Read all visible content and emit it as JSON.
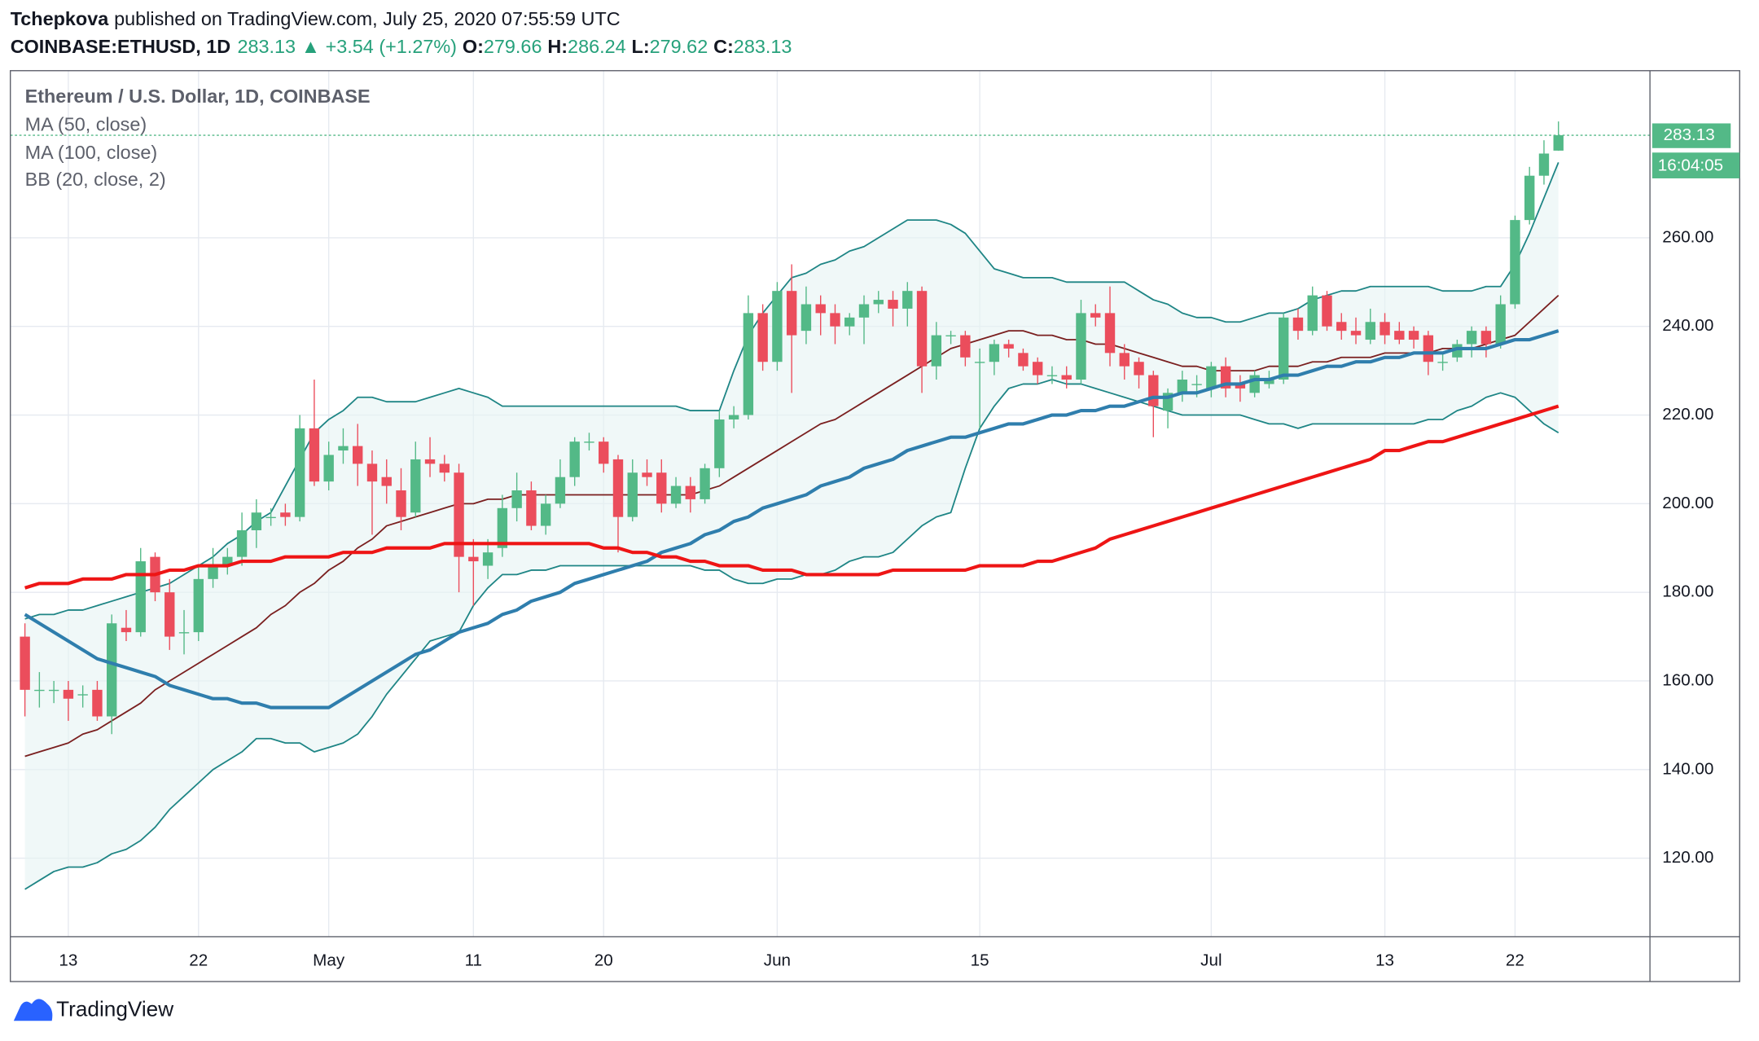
{
  "header": {
    "author": "Tchepkova",
    "published": "published on TradingView.com, July 25, 2020 07:55:59 UTC",
    "symbol": "COINBASE:ETHUSD, 1D",
    "change": "▲ +3.54 (+1.27%)",
    "o": "O:",
    "h": "H:",
    "l": "L:",
    "c": "C:",
    "logo": "TradingView"
  },
  "chart_data": {
    "type": "candlestick",
    "title": "Ethereum / U.S. Dollar, 1D, COINBASE",
    "countdown": "16:04:05",
    "up_color": "#53b987",
    "down_color": "#eb4d5c",
    "grid": true,
    "ylim": [
      102.3,
      297.7
    ],
    "yticks": [
      {
        "value": 120,
        "label": "120.00"
      },
      {
        "value": 140,
        "label": "140.00"
      },
      {
        "value": 160,
        "label": "160.00"
      },
      {
        "value": 180,
        "label": "180.00"
      },
      {
        "value": 200,
        "label": "200.00"
      },
      {
        "value": 220,
        "label": "220.00"
      },
      {
        "value": 240,
        "label": "240.00"
      },
      {
        "value": 260,
        "label": "260.00"
      }
    ],
    "categories": [
      null,
      null,
      null,
      "13",
      null,
      null,
      null,
      null,
      null,
      null,
      null,
      null,
      "22",
      null,
      null,
      null,
      null,
      null,
      null,
      null,
      null,
      "May",
      null,
      null,
      null,
      null,
      null,
      null,
      null,
      null,
      null,
      "11",
      null,
      null,
      null,
      null,
      null,
      null,
      null,
      null,
      "20",
      null,
      null,
      null,
      null,
      null,
      null,
      null,
      null,
      null,
      null,
      null,
      "Jun",
      null,
      null,
      null,
      null,
      null,
      null,
      null,
      null,
      null,
      null,
      null,
      null,
      null,
      "15",
      null,
      null,
      null,
      null,
      null,
      null,
      null,
      null,
      null,
      null,
      null,
      null,
      null,
      null,
      null,
      "Jul",
      null,
      null,
      null,
      null,
      null,
      null,
      null,
      null,
      null,
      null,
      null,
      "13",
      null,
      null,
      null,
      null,
      null,
      null,
      null,
      null,
      "22",
      null,
      null,
      null
    ],
    "open": [
      170,
      158,
      158,
      158,
      157,
      158,
      152,
      172,
      171,
      188,
      180,
      171,
      171,
      183,
      186,
      188,
      194,
      197,
      198,
      197,
      217,
      205,
      212,
      213,
      209,
      206,
      203,
      198,
      210,
      209,
      207,
      188,
      186,
      190,
      199,
      203,
      195,
      200,
      206,
      214,
      214,
      210,
      197,
      207,
      207,
      200,
      204,
      201,
      208,
      219,
      220,
      243,
      232,
      248,
      239,
      245,
      243,
      240,
      242,
      245,
      246,
      244,
      248,
      231,
      238,
      238,
      232,
      232,
      236,
      234,
      232,
      229,
      229,
      228,
      243,
      243,
      234,
      232,
      229,
      221,
      225,
      227,
      226,
      231,
      227,
      225,
      227,
      228,
      242,
      239,
      247,
      241,
      239,
      237,
      241,
      239,
      239,
      238,
      232,
      233,
      236,
      239,
      236,
      245,
      264,
      274,
      279.66
    ],
    "high": [
      173,
      162,
      160,
      160,
      159,
      160,
      175,
      176,
      190,
      189,
      183,
      176,
      186,
      190,
      190,
      198,
      201,
      199,
      200,
      220,
      228,
      214,
      217,
      218,
      212,
      210,
      208,
      214,
      215,
      211,
      209,
      192,
      192,
      202,
      207,
      205,
      202,
      210,
      215,
      216,
      215,
      211,
      210,
      210,
      210,
      206,
      206,
      209,
      221,
      222,
      247,
      245,
      250,
      254,
      249,
      247,
      245,
      243,
      247,
      248,
      248,
      250,
      249,
      241,
      239,
      239,
      235,
      237,
      237,
      235,
      233,
      231,
      231,
      246,
      245,
      249,
      236,
      233,
      230,
      226,
      230,
      229,
      232,
      233,
      229,
      230,
      230,
      243,
      244,
      249,
      248,
      243,
      242,
      244,
      243,
      241,
      240,
      239,
      234,
      237,
      240,
      240,
      247,
      265,
      276,
      282,
      286.24
    ],
    "low": [
      152,
      154,
      155,
      151,
      154,
      151,
      148,
      169,
      170,
      178,
      167,
      166,
      169,
      181,
      184,
      186,
      190,
      195,
      195,
      196,
      204,
      203,
      209,
      204,
      193,
      200,
      194,
      197,
      206,
      205,
      180,
      177,
      183,
      188,
      196,
      194,
      193,
      199,
      204,
      212,
      207,
      189,
      196,
      204,
      198,
      199,
      198,
      200,
      206,
      217,
      219,
      230,
      230,
      225,
      236,
      238,
      236,
      238,
      236,
      243,
      240,
      240,
      225,
      228,
      236,
      231,
      217,
      229,
      233,
      230,
      227,
      227,
      226,
      227,
      240,
      231,
      228,
      226,
      215,
      217,
      223,
      224,
      224,
      224,
      223,
      224,
      226,
      227,
      237,
      238,
      239,
      237,
      236,
      236,
      236,
      236,
      235,
      229,
      230,
      232,
      233,
      233,
      235,
      244,
      263,
      272,
      279.62
    ],
    "close": [
      158,
      158,
      158,
      156,
      157,
      152,
      173,
      171,
      187,
      180,
      170,
      171,
      183,
      186,
      188,
      194,
      198,
      197,
      197,
      217,
      205,
      211,
      213,
      209,
      205,
      204,
      197,
      210,
      209,
      207,
      188,
      187,
      189,
      199,
      203,
      195,
      200,
      206,
      214,
      214,
      209,
      197,
      207,
      206,
      200,
      204,
      201,
      208,
      219,
      220,
      243,
      232,
      248,
      238,
      245,
      243,
      240,
      242,
      245,
      246,
      244,
      248,
      231,
      238,
      238,
      233,
      232,
      236,
      235,
      231,
      229,
      229,
      228,
      243,
      242,
      234,
      231,
      229,
      222,
      225,
      228,
      227,
      231,
      226,
      226,
      229,
      228,
      242,
      239,
      247,
      240,
      239,
      238,
      241,
      238,
      237,
      237,
      232,
      232,
      236,
      239,
      236,
      245,
      264,
      274,
      279,
      283.13
    ],
    "series": [
      {
        "name": "MA (50, close)",
        "color": "#2f7ead",
        "values": [
          175,
          173,
          171,
          169,
          167,
          165,
          164,
          163,
          162,
          161,
          159,
          158,
          157,
          156,
          156,
          155,
          155,
          154,
          154,
          154,
          154,
          154,
          156,
          158,
          160,
          162,
          164,
          166,
          167,
          169,
          171,
          172,
          173,
          175,
          176,
          178,
          179,
          180,
          182,
          183,
          184,
          185,
          186,
          187,
          189,
          190,
          191,
          193,
          194,
          196,
          197,
          199,
          200,
          201,
          202,
          204,
          205,
          206,
          208,
          209,
          210,
          212,
          213,
          214,
          215,
          215,
          216,
          217,
          218,
          218,
          219,
          220,
          220,
          221,
          221,
          222,
          222,
          223,
          224,
          224,
          225,
          225,
          226,
          227,
          227,
          228,
          228,
          229,
          229,
          230,
          231,
          231,
          232,
          232,
          233,
          233,
          234,
          234,
          234,
          235,
          235,
          235,
          236,
          237,
          237,
          238,
          239
        ]
      },
      {
        "name": "MA (100, close)",
        "color": "#ee1515",
        "values": [
          181,
          182,
          182,
          182,
          183,
          183,
          183,
          184,
          184,
          184,
          185,
          185,
          186,
          186,
          186,
          187,
          187,
          187,
          188,
          188,
          188,
          188,
          189,
          189,
          189,
          190,
          190,
          190,
          190,
          191,
          191,
          191,
          191,
          191,
          191,
          191,
          191,
          191,
          191,
          191,
          190,
          190,
          189,
          189,
          188,
          188,
          187,
          187,
          186,
          186,
          186,
          185,
          185,
          185,
          184,
          184,
          184,
          184,
          184,
          184,
          185,
          185,
          185,
          185,
          185,
          185,
          186,
          186,
          186,
          186,
          187,
          187,
          188,
          189,
          190,
          192,
          193,
          194,
          195,
          196,
          197,
          198,
          199,
          200,
          201,
          202,
          203,
          204,
          205,
          206,
          207,
          208,
          209,
          210,
          212,
          212,
          213,
          214,
          214,
          215,
          216,
          217,
          218,
          219,
          220,
          221,
          222
        ]
      }
    ],
    "bands": {
      "name": "BB (20, close, 2)",
      "color": "#1e8585",
      "basis_color": "#7a1f1f",
      "fill": "#e6f4f4",
      "basis": [
        143,
        144,
        145,
        146,
        148,
        149,
        151,
        153,
        155,
        158,
        160,
        162,
        164,
        166,
        168,
        170,
        172,
        175,
        177,
        180,
        182,
        185,
        187,
        190,
        192,
        195,
        196,
        197,
        198,
        199,
        200,
        200,
        201,
        201,
        202,
        202,
        202,
        202,
        202,
        202,
        202,
        202,
        202,
        202,
        202,
        202,
        202,
        203,
        204,
        206,
        208,
        210,
        212,
        214,
        216,
        218,
        219,
        221,
        223,
        225,
        227,
        229,
        231,
        233,
        235,
        236,
        237,
        238,
        239,
        239,
        238,
        238,
        237,
        237,
        236,
        236,
        235,
        234,
        233,
        232,
        231,
        231,
        230,
        230,
        230,
        230,
        231,
        231,
        231,
        232,
        232,
        233,
        233,
        233,
        234,
        234,
        234,
        234,
        235,
        235,
        235,
        236,
        237,
        238,
        241,
        244,
        247
      ],
      "upper": [
        174,
        175,
        175,
        176,
        176,
        177,
        178,
        179,
        180,
        181,
        182,
        184,
        186,
        188,
        191,
        193,
        196,
        198,
        204,
        210,
        216,
        219,
        221,
        224,
        224,
        223,
        223,
        223,
        224,
        225,
        226,
        225,
        224,
        222,
        222,
        222,
        222,
        222,
        222,
        222,
        222,
        222,
        222,
        222,
        222,
        222,
        221,
        221,
        221,
        230,
        238,
        243,
        247,
        251,
        252,
        254,
        255,
        257,
        258,
        260,
        262,
        264,
        264,
        264,
        263,
        261,
        257,
        253,
        252,
        251,
        251,
        251,
        250,
        250,
        250,
        250,
        250,
        248,
        246,
        245,
        243,
        242,
        242,
        241,
        241,
        242,
        243,
        243,
        244,
        246,
        247,
        248,
        248,
        249,
        249,
        249,
        249,
        249,
        248,
        248,
        248,
        249,
        249,
        254,
        261,
        269,
        277
      ],
      "lower": [
        113,
        115,
        117,
        118,
        118,
        119,
        121,
        122,
        124,
        127,
        131,
        134,
        137,
        140,
        142,
        144,
        147,
        147,
        146,
        146,
        144,
        145,
        146,
        148,
        152,
        157,
        161,
        165,
        169,
        170,
        171,
        177,
        181,
        184,
        184,
        185,
        185,
        186,
        186,
        186,
        186,
        186,
        186,
        186,
        186,
        186,
        186,
        185,
        185,
        183,
        182,
        182,
        183,
        183,
        184,
        184,
        185,
        187,
        188,
        188,
        189,
        192,
        195,
        197,
        198,
        208,
        217,
        222,
        226,
        227,
        227,
        228,
        227,
        227,
        226,
        225,
        224,
        223,
        222,
        221,
        220,
        220,
        220,
        220,
        220,
        219,
        218,
        218,
        217,
        218,
        218,
        218,
        218,
        218,
        218,
        218,
        218,
        219,
        219,
        221,
        222,
        224,
        225,
        224,
        221,
        218,
        216
      ]
    }
  }
}
